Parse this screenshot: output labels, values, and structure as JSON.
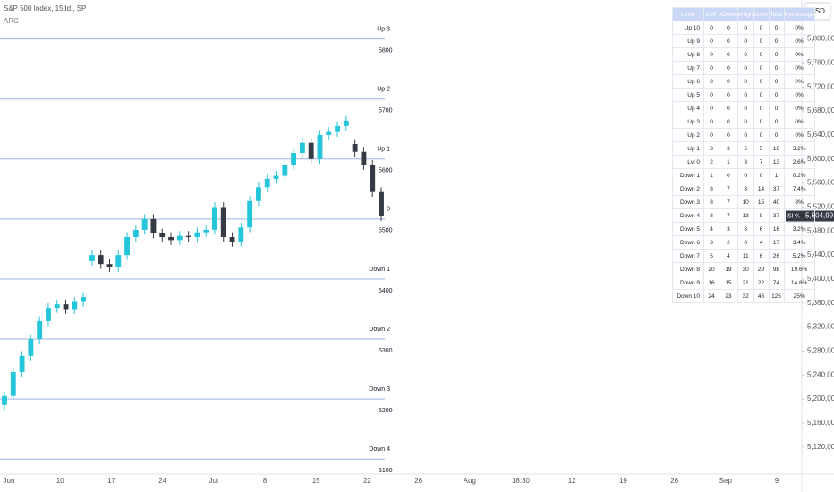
{
  "chart_data": {
    "type": "candlestick",
    "title": "S&P 500 Index, 15tld., SP",
    "subtitle": "ARC",
    "currency": "USD",
    "open": [
      5190,
      5205,
      5245,
      5272,
      5300,
      5330,
      5352,
      5358,
      5350,
      5362,
      5430,
      5440,
      5425,
      5420,
      5440,
      5470,
      5482,
      5500,
      5476,
      5470,
      5465,
      5472,
      5470,
      5478,
      5482,
      5520,
      5470,
      5462,
      5486,
      5530,
      5553,
      5567,
      5572,
      5590,
      5610,
      5627,
      5600,
      5640,
      5645,
      5655,
      5625,
      5612,
      5590,
      5545
    ],
    "high": [
      5213,
      5253,
      5280,
      5308,
      5338,
      5360,
      5366,
      5366,
      5370,
      5378,
      5448,
      5448,
      5433,
      5448,
      5478,
      5490,
      5508,
      5508,
      5484,
      5478,
      5480,
      5480,
      5486,
      5490,
      5528,
      5528,
      5478,
      5494,
      5538,
      5561,
      5575,
      5580,
      5598,
      5618,
      5635,
      5635,
      5648,
      5653,
      5663,
      5672,
      5633,
      5620,
      5598,
      5553
    ],
    "low": [
      5182,
      5197,
      5237,
      5264,
      5292,
      5322,
      5344,
      5342,
      5342,
      5354,
      5422,
      5417,
      5412,
      5412,
      5432,
      5462,
      5474,
      5468,
      5462,
      5457,
      5457,
      5462,
      5462,
      5470,
      5474,
      5462,
      5454,
      5454,
      5478,
      5522,
      5545,
      5559,
      5564,
      5582,
      5602,
      5592,
      5592,
      5632,
      5637,
      5647,
      5604,
      5582,
      5537,
      5497
    ],
    "close": [
      5205,
      5245,
      5272,
      5300,
      5330,
      5352,
      5358,
      5350,
      5362,
      5370,
      5440,
      5425,
      5420,
      5440,
      5470,
      5482,
      5500,
      5476,
      5470,
      5465,
      5472,
      5470,
      5478,
      5482,
      5520,
      5470,
      5462,
      5486,
      5530,
      5553,
      5567,
      5572,
      5590,
      5610,
      5627,
      5600,
      5640,
      5645,
      5655,
      5664,
      5612,
      5590,
      5545,
      5505
    ],
    "up_color": "#26c6da",
    "down_color": "#363a45",
    "ylim": [
      5075,
      5865
    ],
    "yticks": [
      {
        "value": 5800,
        "label": "5,800,00"
      },
      {
        "value": 5760,
        "label": "5,760,00"
      },
      {
        "value": 5720,
        "label": "5,720,00"
      },
      {
        "value": 5680,
        "label": "5,680,00"
      },
      {
        "value": 5640,
        "label": "5,640,00"
      },
      {
        "value": 5600,
        "label": "5,600,00"
      },
      {
        "value": 5560,
        "label": "5,560,00"
      },
      {
        "value": 5520,
        "label": "5,520,00"
      },
      {
        "value": 5480,
        "label": "5,480,00"
      },
      {
        "value": 5440,
        "label": "5,440,00"
      },
      {
        "value": 5400,
        "label": "5,400,00"
      },
      {
        "value": 5360,
        "label": "5,360,00"
      },
      {
        "value": 5320,
        "label": "5,320,00"
      },
      {
        "value": 5280,
        "label": "5,280,00"
      },
      {
        "value": 5240,
        "label": "5,240,00"
      },
      {
        "value": 5200,
        "label": "5,200,00"
      },
      {
        "value": 5160,
        "label": "5,160,00"
      },
      {
        "value": 5120,
        "label": "5,120,00"
      }
    ],
    "x_labels": [
      "Jun",
      "10",
      "17",
      "24",
      "Jul",
      "8",
      "15",
      "22",
      "26",
      "Aug",
      "18:30",
      "12",
      "19",
      "26",
      "Sep",
      "9"
    ],
    "levels": [
      {
        "name": "Up 3",
        "value": 5800
      },
      {
        "name": "Up 2",
        "value": 5700
      },
      {
        "name": "Up 1",
        "value": 5600
      },
      {
        "name": "0",
        "value": 5500
      },
      {
        "name": "Down 1",
        "value": 5400
      },
      {
        "name": "Down 2",
        "value": 5300
      },
      {
        "name": "Down 3",
        "value": 5200
      },
      {
        "name": "Down 4",
        "value": 5100
      }
    ],
    "level_color": "#9db4e8",
    "last_price": {
      "symbol": "SPX",
      "value": 5504.99,
      "label": "5,504,99"
    }
  },
  "table": {
    "header": [
      "Level",
      "xUP",
      "xDown",
      "xHigh",
      "xLow",
      "Total",
      "Percentage"
    ],
    "rows": [
      [
        "Up 10",
        0,
        0,
        0,
        0,
        0,
        "0%"
      ],
      [
        "Up 9",
        0,
        0,
        0,
        0,
        0,
        "0%"
      ],
      [
        "Up 8",
        0,
        0,
        0,
        0,
        0,
        "0%"
      ],
      [
        "Up 7",
        0,
        0,
        0,
        0,
        0,
        "0%"
      ],
      [
        "Up 6",
        0,
        0,
        0,
        0,
        0,
        "0%"
      ],
      [
        "Up 5",
        0,
        0,
        0,
        0,
        0,
        "0%"
      ],
      [
        "Up 4",
        0,
        0,
        0,
        0,
        0,
        "0%"
      ],
      [
        "Up 3",
        0,
        0,
        0,
        0,
        0,
        "0%"
      ],
      [
        "Up 2",
        0,
        0,
        0,
        0,
        0,
        "0%"
      ],
      [
        "Up 1",
        3,
        3,
        5,
        5,
        16,
        "3.2%"
      ],
      [
        "Lvl 0",
        2,
        1,
        3,
        7,
        13,
        "2.6%"
      ],
      [
        "Down 1",
        1,
        0,
        0,
        0,
        1,
        "0.2%"
      ],
      [
        "Down 2",
        8,
        7,
        8,
        14,
        37,
        "7.4%"
      ],
      [
        "Down 3",
        8,
        7,
        10,
        15,
        40,
        "8%"
      ],
      [
        "Down 4",
        8,
        7,
        13,
        9,
        37,
        "7.4%"
      ],
      [
        "Down 5",
        4,
        3,
        3,
        6,
        16,
        "3.2%"
      ],
      [
        "Down 6",
        3,
        2,
        8,
        4,
        17,
        "3.4%"
      ],
      [
        "Down 7",
        5,
        4,
        11,
        6,
        26,
        "5.2%"
      ],
      [
        "Down 8",
        20,
        19,
        30,
        29,
        98,
        "19.6%"
      ],
      [
        "Down 9",
        16,
        15,
        21,
        22,
        74,
        "14.8%"
      ],
      [
        "Down 10",
        24,
        23,
        32,
        46,
        125,
        "25%"
      ]
    ]
  }
}
